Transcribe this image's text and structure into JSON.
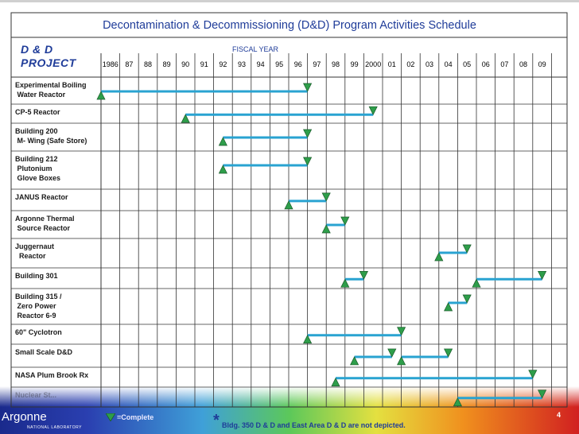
{
  "slide": {
    "title": "Decontamination & Decommissioning (D&D) Program Activities Schedule",
    "project_label_line1": "D & D",
    "project_label_line2": "PROJECT",
    "fiscal_year_label": "FISCAL YEAR",
    "legend_complete": "=Complete",
    "footnote_star": "*",
    "footnote": "Bldg. 350 D & D and East Area  D & D are  not depicted.",
    "page_number": "4",
    "logo_text": "Argonne",
    "logo_subtext": "NATIONAL LABORATORY",
    "partial_label": "Nuclear St..."
  },
  "colors": {
    "title": "#1f3c99",
    "bar": "#29a3d1",
    "start_marker": "#2e9e4a",
    "end_marker": "#2e9e4a",
    "grid": "#333333"
  },
  "chart_data": {
    "type": "gantt",
    "title": "Decontamination & Decommissioning (D&D) Program Activities Schedule",
    "xlabel": "FISCAL YEAR",
    "ylabel": "D & D PROJECT",
    "year_labels": [
      "1986",
      "87",
      "88",
      "89",
      "90",
      "91",
      "92",
      "93",
      "94",
      "95",
      "96",
      "97",
      "98",
      "99",
      "2000",
      "01",
      "02",
      "03",
      "04",
      "05",
      "06",
      "07",
      "08",
      "09"
    ],
    "years": [
      1986,
      1987,
      1988,
      1989,
      1990,
      1991,
      1992,
      1993,
      1994,
      1995,
      1996,
      1997,
      1998,
      1999,
      2000,
      2001,
      2002,
      2003,
      2004,
      2005,
      2006,
      2007,
      2008,
      2009
    ],
    "projects": [
      {
        "label": "Experimental Boiling\n Water Reactor",
        "segments": [
          {
            "start": 1986.0,
            "end": 1997.0
          }
        ]
      },
      {
        "label": "CP-5 Reactor",
        "segments": [
          {
            "start": 1990.5,
            "end": 2000.5
          }
        ]
      },
      {
        "label": "Building 200\n M- Wing (Safe Store)",
        "segments": [
          {
            "start": 1992.5,
            "end": 1997.0
          }
        ]
      },
      {
        "label": "Building 212\n Plutonium\n Glove Boxes",
        "segments": [
          {
            "start": 1992.5,
            "end": 1997.0
          }
        ]
      },
      {
        "label": "JANUS Reactor",
        "segments": [
          {
            "start": 1996.0,
            "end": 1998.0
          }
        ]
      },
      {
        "label": "Argonne Thermal\n Source Reactor",
        "segments": [
          {
            "start": 1998.0,
            "end": 1999.0
          }
        ]
      },
      {
        "label": "Juggernaut\n  Reactor",
        "segments": [
          {
            "start": 2004.0,
            "end": 2005.5
          }
        ]
      },
      {
        "label": "Building 301",
        "segments": [
          {
            "start": 1999.0,
            "end": 2000.0
          },
          {
            "start": 2006.0,
            "end": 2009.5
          }
        ]
      },
      {
        "label": "Building 315 /\n Zero Power\n Reactor 6-9",
        "segments": [
          {
            "start": 2004.5,
            "end": 2005.5
          }
        ]
      },
      {
        "label": "60\" Cyclotron",
        "segments": [
          {
            "start": 1997.0,
            "end": 2002.0
          }
        ]
      },
      {
        "label": "Small Scale D&D",
        "segments": [
          {
            "start": 1999.5,
            "end": 2001.5
          },
          {
            "start": 2002.0,
            "end": 2004.5
          }
        ]
      },
      {
        "label": "NASA Plum Brook Rx",
        "segments": [
          {
            "start": 1998.5,
            "end": 2009.0
          }
        ]
      },
      {
        "label": "Nuclear St...",
        "segments": [
          {
            "start": 2005.0,
            "end": 2009.5
          }
        ]
      }
    ]
  }
}
